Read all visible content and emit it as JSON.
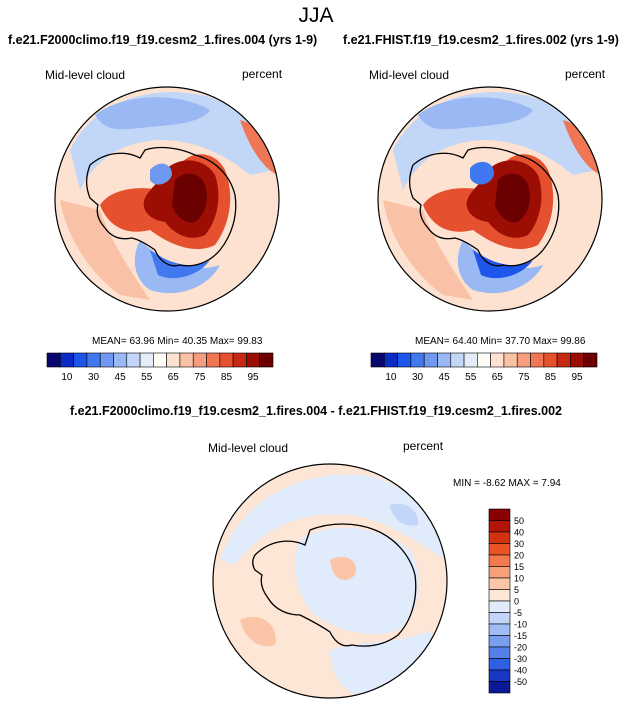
{
  "figure": {
    "season": "JJA",
    "left": {
      "title": "f.e21.F2000climo.f19_f19.cesm2_1.fires.004 (yrs 1-9)",
      "variable": "Mid-level cloud",
      "units": "percent",
      "mean_label": "MEAN=",
      "mean": "63.96",
      "min_label": "Min=",
      "min": "40.35",
      "max_label": "Max=",
      "max": "99.83"
    },
    "right": {
      "title": "f.e21.FHIST.f19_f19.cesm2_1.fires.002 (yrs 1-9)",
      "variable": "Mid-level cloud",
      "units": "percent",
      "mean_label": "MEAN=",
      "mean": "64.40",
      "min_label": "Min=",
      "min": "37.70",
      "max_label": "Max=",
      "max": "99.86"
    },
    "diff": {
      "title": "f.e21.F2000climo.f19_f19.cesm2_1.fires.004 - f.e21.FHIST.f19_f19.cesm2_1.fires.002",
      "variable": "Mid-level cloud",
      "units": "percent",
      "min_label": "MIN =",
      "min": "-8.62",
      "max_label": "MAX =",
      "max": "7.94"
    }
  },
  "chart_data": [
    {
      "type": "heatmap",
      "projection": "south-polar-stereographic",
      "title": "f.e21.F2000climo.f19_f19.cesm2_1.fires.004 (yrs 1-9)",
      "variable": "Mid-level cloud",
      "units": "percent",
      "stats": {
        "mean": 63.96,
        "min": 40.35,
        "max": 99.83
      },
      "colorbar_labels": [
        "10",
        "30",
        "45",
        "55",
        "65",
        "75",
        "85",
        "95"
      ],
      "colorbar_colors": [
        "#08076e",
        "#0c2bc4",
        "#1e55ea",
        "#3f78ef",
        "#6f98f0",
        "#9ab8f4",
        "#c2d6f8",
        "#e4eefb",
        "#fffdf6",
        "#fde2d2",
        "#f9c2a6",
        "#f59e7f",
        "#ef7755",
        "#e5502e",
        "#c72812",
        "#9c0e04",
        "#6a0000"
      ]
    },
    {
      "type": "heatmap",
      "projection": "south-polar-stereographic",
      "title": "f.e21.FHIST.f19_f19.cesm2_1.fires.002 (yrs 1-9)",
      "variable": "Mid-level cloud",
      "units": "percent",
      "stats": {
        "mean": 64.4,
        "min": 37.7,
        "max": 99.86
      },
      "colorbar_labels": [
        "10",
        "30",
        "45",
        "55",
        "65",
        "75",
        "85",
        "95"
      ],
      "colorbar_colors": [
        "#08076e",
        "#0c2bc4",
        "#1e55ea",
        "#3f78ef",
        "#6f98f0",
        "#9ab8f4",
        "#c2d6f8",
        "#e4eefb",
        "#fffdf6",
        "#fde2d2",
        "#f9c2a6",
        "#f59e7f",
        "#ef7755",
        "#e5502e",
        "#c72812",
        "#9c0e04",
        "#6a0000"
      ]
    },
    {
      "type": "heatmap",
      "projection": "south-polar-stereographic",
      "title": "f.e21.F2000climo.f19_f19.cesm2_1.fires.004 - f.e21.FHIST.f19_f19.cesm2_1.fires.002",
      "variable": "Mid-level cloud",
      "units": "percent",
      "stats": {
        "min": -8.62,
        "max": 7.94
      },
      "colorbar_labels": [
        "50",
        "40",
        "30",
        "20",
        "15",
        "10",
        "5",
        "0",
        "-5",
        "-10",
        "-15",
        "-20",
        "-30",
        "-40",
        "-50"
      ],
      "colorbar_colors": [
        "#8a0000",
        "#b01508",
        "#d2320f",
        "#ea5326",
        "#f47a4f",
        "#f8a07c",
        "#fbc5a8",
        "#fde6d6",
        "#e0ebfb",
        "#c3d5f8",
        "#a0bcf4",
        "#7b9ff0",
        "#5580ec",
        "#2f5fe2",
        "#1838c3",
        "#0a1a96"
      ]
    }
  ]
}
